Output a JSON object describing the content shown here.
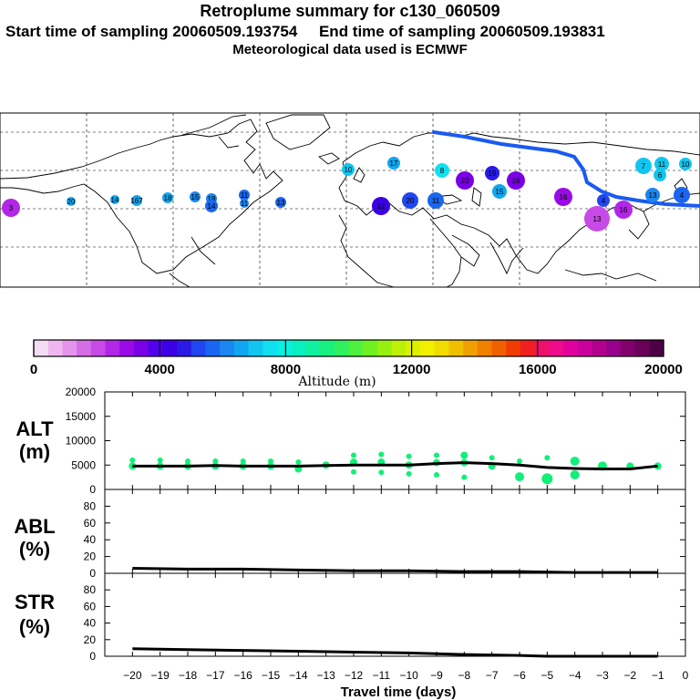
{
  "header": {
    "title": "Retroplume summary for c130_060509",
    "start_label": "Start time of sampling 20060509.193754",
    "end_label": "End time of sampling 20060509.193831",
    "met_label": "Meteorological data used is ECMWF"
  },
  "colorbar": {
    "ticks": [
      "0",
      "4000",
      "8000",
      "12000",
      "16000",
      "20000"
    ],
    "label": "Altitude (m)",
    "colors": [
      "#f5dcf5",
      "#eeb8ee",
      "#e494ec",
      "#d56ee6",
      "#c84ae6",
      "#b226e6",
      "#9a0ae6",
      "#7a00e6",
      "#5200ee",
      "#3a00e6",
      "#2a1ae6",
      "#2046f0",
      "#1a66f0",
      "#1a86f0",
      "#10a6f0",
      "#10c6f0",
      "#10e0f0",
      "#08f0e0",
      "#08f0c0",
      "#10f0a0",
      "#18f080",
      "#30f060",
      "#50f040",
      "#70f020",
      "#98f010",
      "#bcf008",
      "#dcf000",
      "#f0f000",
      "#f0dc00",
      "#f0c000",
      "#f0a000",
      "#f08000",
      "#f06000",
      "#f03c00",
      "#f02020",
      "#f0106c",
      "#f00a8c",
      "#e0009c",
      "#c8009c",
      "#b0008c",
      "#98008c",
      "#80006c",
      "#6a0058",
      "#4e0046"
    ]
  },
  "chart_data": [
    {
      "type": "scatter",
      "name": "ALT",
      "panel_label": [
        "ALT",
        "(m)"
      ],
      "ylim": [
        0,
        20000
      ],
      "yticks": [
        "20000",
        "15000",
        "10000",
        "5000",
        "0"
      ],
      "median": {
        "x": [
          -20,
          -19,
          -18,
          -17,
          -16,
          -15,
          -14,
          -13,
          -12,
          -11,
          -10,
          -9,
          -8,
          -7,
          -6,
          -5,
          -4,
          -3,
          -2,
          -1
        ],
        "y": [
          4800,
          4800,
          4800,
          4900,
          4800,
          4800,
          4800,
          4900,
          5000,
          5000,
          5000,
          5300,
          5500,
          5300,
          5000,
          4500,
          4300,
          4200,
          4200,
          4800
        ]
      },
      "clusters": {
        "x": [
          -20,
          -20,
          -19,
          -19,
          -18,
          -18,
          -17,
          -17,
          -16,
          -16,
          -15,
          -15,
          -14,
          -14,
          -13,
          -12,
          -12,
          -12,
          -11,
          -11,
          -11,
          -10,
          -10,
          -10,
          -9,
          -9,
          -9,
          -8,
          -8,
          -8,
          -7,
          -7,
          -6,
          -6,
          -5,
          -5,
          -4,
          -4,
          -3,
          -2,
          -1
        ],
        "y": [
          6000,
          4800,
          6000,
          4800,
          5800,
          4800,
          5800,
          4800,
          5800,
          4800,
          5800,
          4800,
          5600,
          4200,
          5000,
          7000,
          5600,
          3600,
          7200,
          5600,
          3500,
          6800,
          5000,
          3200,
          7000,
          5500,
          3000,
          7000,
          5500,
          2500,
          6500,
          4800,
          2600,
          5800,
          6500,
          2200,
          5800,
          3000,
          4800,
          4800,
          4800
        ],
        "size": [
          2,
          3,
          2,
          3,
          2,
          3,
          2,
          3,
          2,
          3,
          2,
          3,
          2,
          3,
          3,
          2,
          3,
          2,
          2,
          3,
          2,
          2,
          3,
          2,
          2,
          3,
          2,
          3,
          3,
          2,
          2,
          3,
          4,
          2,
          2,
          5,
          4,
          4,
          4,
          3,
          3
        ],
        "color": "#10f078"
      }
    },
    {
      "type": "line",
      "name": "ABL",
      "panel_label": [
        "ABL",
        "(%)"
      ],
      "ylim": [
        0,
        100
      ],
      "yticks": [
        "80",
        "60",
        "40",
        "20",
        "0"
      ],
      "x": [
        -20,
        -18,
        -16,
        -14,
        -12,
        -10,
        -8,
        -6,
        -4,
        -2,
        -1
      ],
      "y": [
        6,
        5,
        5,
        4,
        3,
        3,
        2,
        2,
        1,
        1,
        1
      ]
    },
    {
      "type": "line",
      "name": "STR",
      "panel_label": [
        "STR",
        "(%)"
      ],
      "ylim": [
        0,
        100
      ],
      "yticks": [
        "80",
        "60",
        "40",
        "20",
        "0"
      ],
      "x": [
        -20,
        -18,
        -16,
        -14,
        -12,
        -10,
        -8,
        -6,
        -5,
        -4,
        -2,
        -1
      ],
      "y": [
        9,
        8,
        7,
        6,
        5,
        4,
        2,
        1,
        0,
        0,
        0,
        0
      ]
    }
  ],
  "xaxis": {
    "ticks": [
      "−20",
      "−19",
      "−18",
      "−17",
      "−16",
      "−15",
      "−14",
      "−13",
      "−12",
      "−11",
      "−10",
      "−9",
      "−8",
      "−7",
      "−6",
      "−5",
      "−4",
      "−3",
      "−2",
      "−1",
      "0"
    ],
    "label": "Travel time (days)"
  },
  "map": {
    "track_color": "#1a5af0",
    "points": [
      {
        "label": "3",
        "color": "#b226e6"
      },
      {
        "label": "20",
        "color": "#10a6f0"
      },
      {
        "label": "14",
        "color": "#10a6f0"
      },
      {
        "label": "167",
        "color": "#10a6f0"
      },
      {
        "label": "18",
        "color": "#10a6f0"
      },
      {
        "label": "15",
        "color": "#1a86f0"
      },
      {
        "label": "18",
        "color": "#1a86f0"
      },
      {
        "label": "14",
        "color": "#1a66f0"
      },
      {
        "label": "11",
        "color": "#1a66f0"
      },
      {
        "label": "11",
        "color": "#1a86f0"
      },
      {
        "label": "13",
        "color": "#1a66f0"
      },
      {
        "label": "10",
        "color": "#10c6f0"
      },
      {
        "label": "17",
        "color": "#10a6f0"
      },
      {
        "label": "8",
        "color": "#10e0f0"
      },
      {
        "label": "20",
        "color": "#7a00e6"
      },
      {
        "label": "12",
        "color": "#3a00e6"
      },
      {
        "label": "20",
        "color": "#2046f0"
      },
      {
        "label": "11",
        "color": "#1a66f0"
      },
      {
        "label": "16",
        "color": "#7a00e6"
      },
      {
        "label": "19",
        "color": "#2a1ae6"
      },
      {
        "label": "15",
        "color": "#10a6f0"
      },
      {
        "label": "16",
        "color": "#9a0ae6"
      },
      {
        "label": "13",
        "color": "#c84ae6"
      },
      {
        "label": "16",
        "color": "#b226e6"
      },
      {
        "label": "4",
        "color": "#2046f0"
      },
      {
        "label": "13",
        "color": "#1a86f0"
      },
      {
        "label": "7",
        "color": "#10c6f0"
      },
      {
        "label": "11",
        "color": "#10c6f0"
      },
      {
        "label": "6",
        "color": "#10c6f0"
      },
      {
        "label": "10",
        "color": "#10c6f0"
      },
      {
        "label": "4",
        "color": "#1a66f0"
      }
    ]
  }
}
